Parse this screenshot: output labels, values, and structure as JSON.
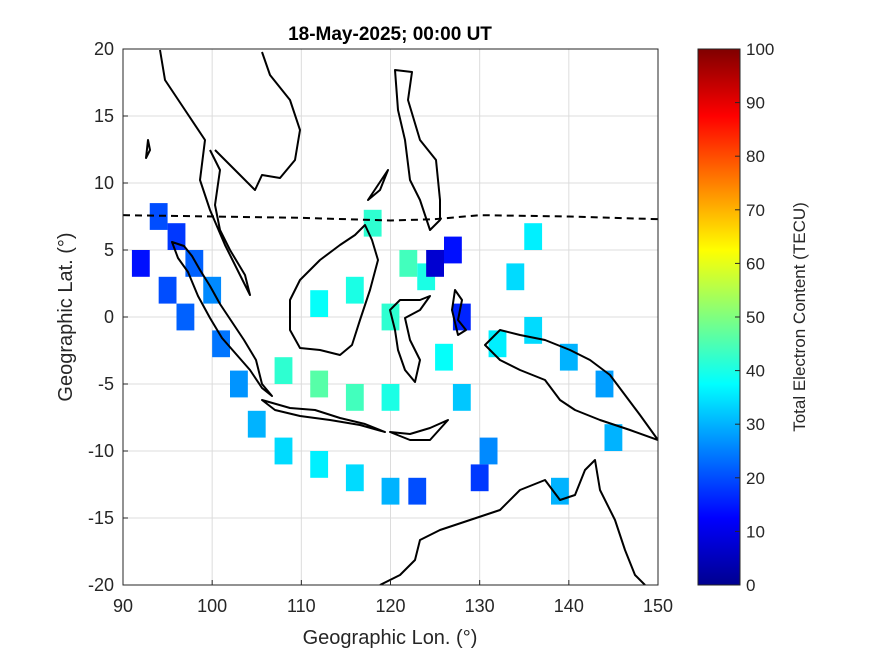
{
  "chart_data": {
    "type": "heatmap",
    "title": "18-May-2025; 00:00 UT",
    "xlabel": "Geographic Lon. (°)",
    "ylabel": "Geographic Lat. (°)",
    "xlim": [
      90,
      150
    ],
    "ylim": [
      -20,
      20
    ],
    "xticks": [
      90,
      100,
      110,
      120,
      130,
      140,
      150
    ],
    "yticks": [
      20,
      15,
      10,
      5,
      0,
      -5,
      -10,
      -15,
      -20
    ],
    "grid": true,
    "colorbar": {
      "label": "Total Electron Content (TECU)",
      "min": 0,
      "max": 100,
      "ticks": [
        0,
        10,
        20,
        30,
        40,
        50,
        60,
        70,
        80,
        90,
        100
      ],
      "colormap": "jet"
    },
    "magnetic_equator": [
      [
        90,
        7.6
      ],
      [
        100,
        7.5
      ],
      [
        110,
        7.4
      ],
      [
        120,
        7.2
      ],
      [
        125,
        7.3
      ],
      [
        130,
        7.6
      ],
      [
        140,
        7.5
      ],
      [
        150,
        7.3
      ]
    ],
    "coverage_cells": [
      {
        "lon": 94,
        "lat": 7.5,
        "tec": 20
      },
      {
        "lon": 96,
        "lat": 6,
        "tec": 18
      },
      {
        "lon": 98,
        "lat": 4,
        "tec": 22
      },
      {
        "lon": 92,
        "lat": 4,
        "tec": 14
      },
      {
        "lon": 95,
        "lat": 2,
        "tec": 20
      },
      {
        "lon": 97,
        "lat": 0,
        "tec": 22
      },
      {
        "lon": 100,
        "lat": 2,
        "tec": 26
      },
      {
        "lon": 101,
        "lat": -2,
        "tec": 24
      },
      {
        "lon": 103,
        "lat": -5,
        "tec": 27
      },
      {
        "lon": 105,
        "lat": -8,
        "tec": 30
      },
      {
        "lon": 108,
        "lat": -10,
        "tec": 34
      },
      {
        "lon": 112,
        "lat": -11,
        "tec": 36
      },
      {
        "lon": 116,
        "lat": -12,
        "tec": 34
      },
      {
        "lon": 120,
        "lat": -13,
        "tec": 30
      },
      {
        "lon": 123,
        "lat": -13,
        "tec": 20
      },
      {
        "lon": 108,
        "lat": -4,
        "tec": 42
      },
      {
        "lon": 112,
        "lat": -5,
        "tec": 46
      },
      {
        "lon": 116,
        "lat": -6,
        "tec": 44
      },
      {
        "lon": 120,
        "lat": -6,
        "tec": 40
      },
      {
        "lon": 112,
        "lat": 1,
        "tec": 38
      },
      {
        "lon": 116,
        "lat": 2,
        "tec": 40
      },
      {
        "lon": 120,
        "lat": 0,
        "tec": 42
      },
      {
        "lon": 122,
        "lat": 4,
        "tec": 44
      },
      {
        "lon": 124,
        "lat": 3,
        "tec": 40
      },
      {
        "lon": 125,
        "lat": 4,
        "tec": 8
      },
      {
        "lon": 127,
        "lat": 5,
        "tec": 14
      },
      {
        "lon": 128,
        "lat": 0,
        "tec": 16
      },
      {
        "lon": 126,
        "lat": -3,
        "tec": 38
      },
      {
        "lon": 132,
        "lat": -2,
        "tec": 36
      },
      {
        "lon": 136,
        "lat": -1,
        "tec": 34
      },
      {
        "lon": 140,
        "lat": -3,
        "tec": 30
      },
      {
        "lon": 144,
        "lat": -5,
        "tec": 28
      },
      {
        "lon": 128,
        "lat": -6,
        "tec": 32
      },
      {
        "lon": 131,
        "lat": -10,
        "tec": 26
      },
      {
        "lon": 130,
        "lat": -12,
        "tec": 18
      },
      {
        "lon": 139,
        "lat": -13,
        "tec": 30
      },
      {
        "lon": 145,
        "lat": -9,
        "tec": 30
      },
      {
        "lon": 134,
        "lat": 3,
        "tec": 34
      },
      {
        "lon": 136,
        "lat": 6,
        "tec": 36
      },
      {
        "lon": 118,
        "lat": 7,
        "tec": 42
      }
    ]
  }
}
